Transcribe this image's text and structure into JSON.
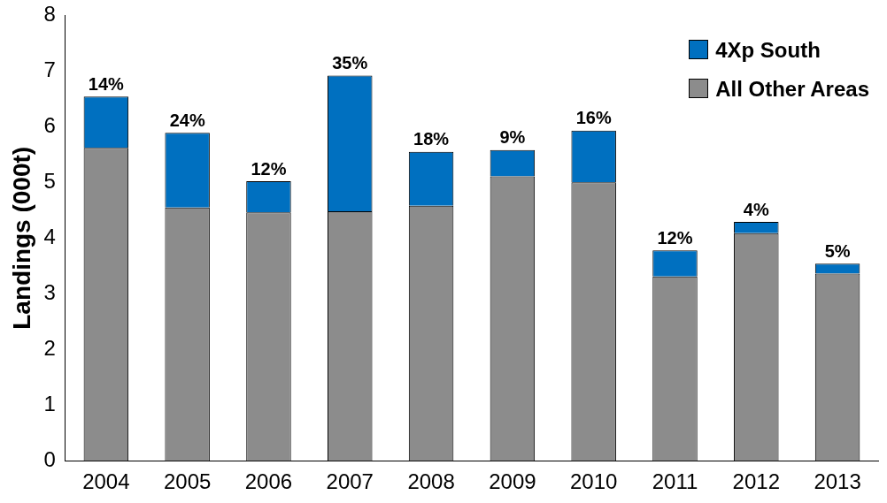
{
  "chart_data": {
    "type": "bar",
    "stacked": true,
    "ylabel": "Landings (000t)",
    "categories": [
      "2004",
      "2005",
      "2006",
      "2007",
      "2008",
      "2009",
      "2010",
      "2011",
      "2012",
      "2013"
    ],
    "series": [
      {
        "name": "All Other Areas",
        "color": "#8c8c8c",
        "values": [
          5.62,
          4.55,
          4.46,
          4.48,
          4.58,
          5.11,
          5.0,
          3.31,
          4.09,
          3.36
        ]
      },
      {
        "name": "4Xp South",
        "color": "#0070c0",
        "values": [
          0.92,
          1.34,
          0.56,
          2.44,
          0.97,
          0.47,
          0.93,
          0.47,
          0.2,
          0.18
        ]
      }
    ],
    "annotations": [
      {
        "text": "14%",
        "x": "2004",
        "y": 6.54
      },
      {
        "text": "24%",
        "x": "2005",
        "y": 5.89
      },
      {
        "text": "12%",
        "x": "2006",
        "y": 5.02
      },
      {
        "text": "35%",
        "x": "2007",
        "y": 6.92
      },
      {
        "text": "18%",
        "x": "2008",
        "y": 5.55
      },
      {
        "text": "9%",
        "x": "2009",
        "y": 5.58
      },
      {
        "text": "16%",
        "x": "2010",
        "y": 5.93
      },
      {
        "text": "12%",
        "x": "2011",
        "y": 3.78
      },
      {
        "text": "4%",
        "x": "2012",
        "y": 4.29
      },
      {
        "text": "5%",
        "x": "2013",
        "y": 3.54
      }
    ],
    "ylim": [
      0,
      8
    ],
    "yticks": [
      0,
      1,
      2,
      3,
      4,
      5,
      6,
      7,
      8
    ],
    "grid": false,
    "legend": "top right"
  }
}
